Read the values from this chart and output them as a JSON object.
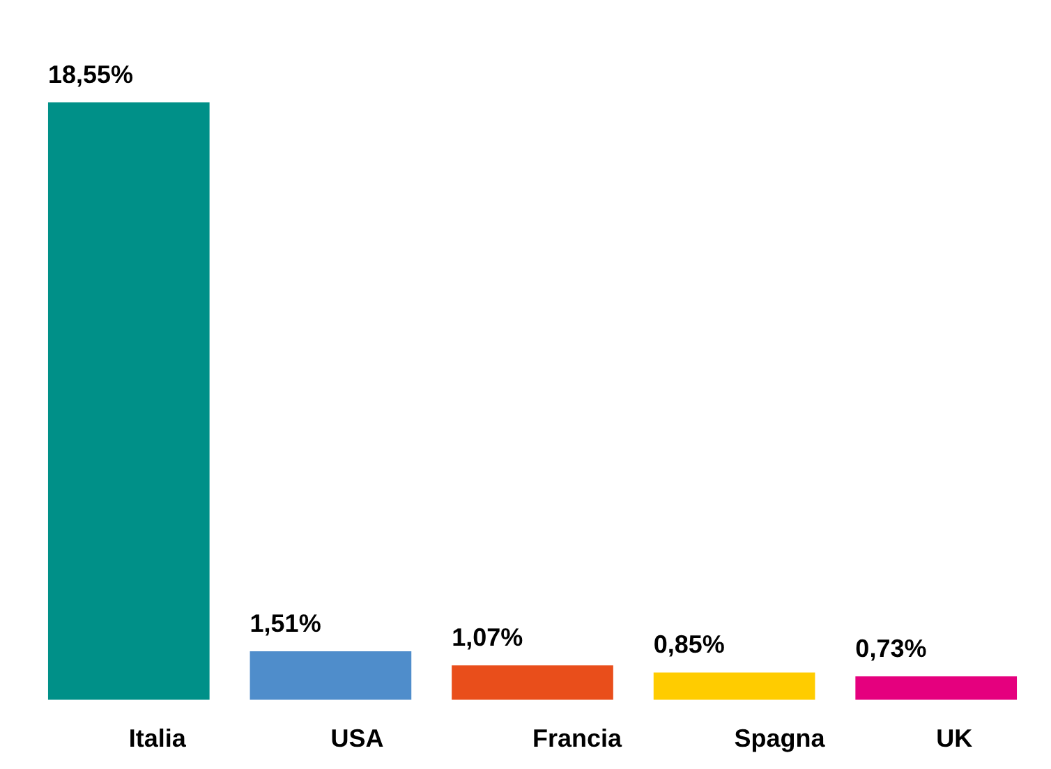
{
  "chart_data": {
    "type": "bar",
    "categories": [
      "Italia",
      "USA",
      "Francia",
      "Spagna",
      "UK"
    ],
    "values": [
      18.55,
      1.51,
      1.07,
      0.85,
      0.73
    ],
    "colors": [
      "#009088",
      "#4f8dcb",
      "#e94e1b",
      "#ffcc00",
      "#e5007e"
    ],
    "value_labels": [
      "18,55%",
      "1,51%",
      "1,07%",
      "0,85%",
      "0,73%"
    ]
  }
}
